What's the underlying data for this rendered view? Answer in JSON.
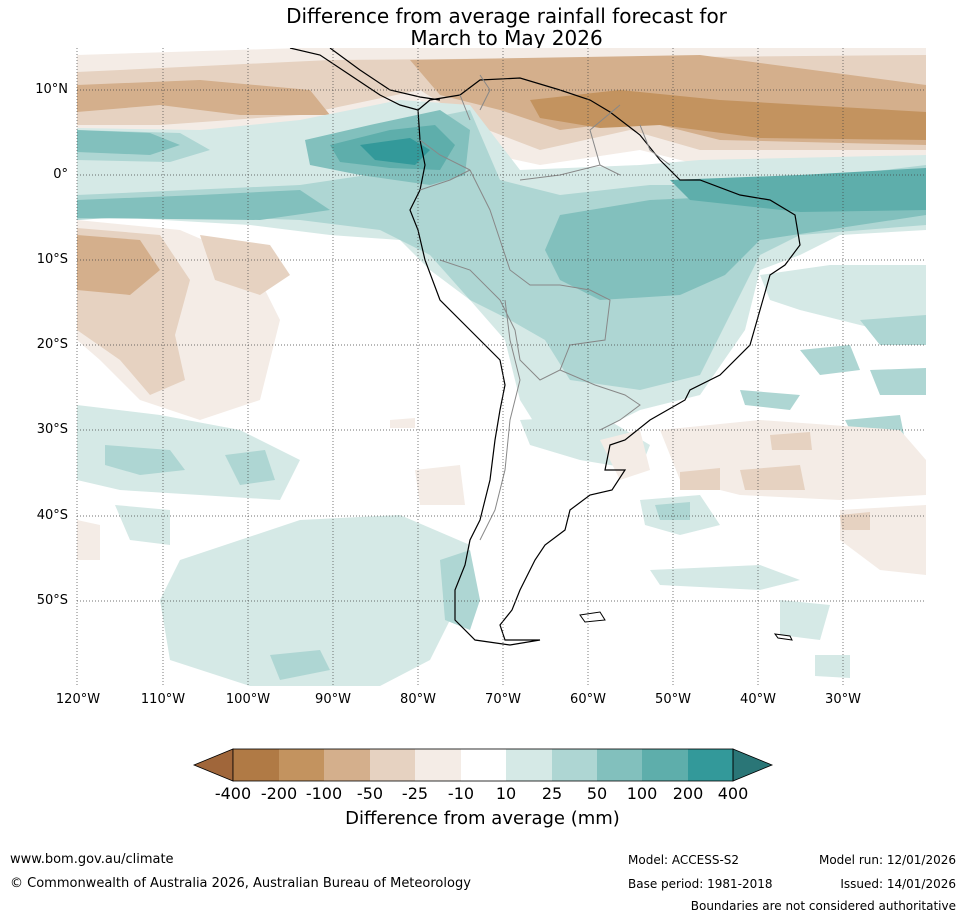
{
  "title": {
    "line1": "Difference from average rainfall forecast for",
    "line2": "March to May 2026"
  },
  "map": {
    "latitude_labels": [
      "10°N",
      "0°",
      "10°S",
      "20°S",
      "30°S",
      "40°S",
      "50°S"
    ],
    "longitude_labels": [
      "120°W",
      "110°W",
      "100°W",
      "90°W",
      "80°W",
      "70°W",
      "60°W",
      "50°W",
      "40°W",
      "30°W"
    ]
  },
  "colorbar": {
    "labels": [
      "-400",
      "-200",
      "-100",
      "-50",
      "-25",
      "-10",
      "10",
      "25",
      "50",
      "100",
      "200",
      "400"
    ],
    "colors": [
      "#a0663a",
      "#b07a45",
      "#c3935f",
      "#d4af8c",
      "#e6d2c1",
      "#f4ece6",
      "#ffffff",
      "#d5e9e6",
      "#aed6d3",
      "#82c0bd",
      "#5eaeab",
      "#33999a",
      "#2a7677"
    ],
    "title": "Difference from average (mm)"
  },
  "footer": {
    "url": "www.bom.gov.au/climate",
    "copyright": "© Commonwealth of Australia 2026, Australian Bureau of Meteorology",
    "model": "Model: ACCESS-S2",
    "base_period": "Base period: 1981-2018",
    "model_run": "Model run: 12/01/2026",
    "issued": "Issued: 14/01/2026",
    "disclaimer": "Boundaries are not considered authoritative"
  }
}
